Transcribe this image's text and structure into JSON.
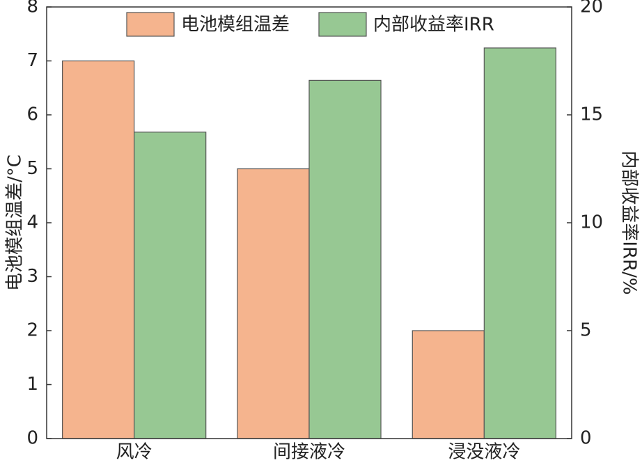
{
  "chart_data": {
    "type": "bar",
    "categories": [
      "风冷",
      "间接液冷",
      "浸没液冷"
    ],
    "series": [
      {
        "name": "电池模组温差",
        "color": "#f5b48e",
        "values": [
          7.0,
          5.0,
          2.0
        ]
      },
      {
        "name": "内部收益率IRR",
        "color": "#97c893",
        "values": [
          14.2,
          16.6,
          18.1
        ],
        "axis": "y2"
      }
    ],
    "ylabel": "电池模组温差/°C",
    "y2label": "内部收益率IRR/%",
    "ylim": [
      0,
      8
    ],
    "yticks": [
      0,
      1,
      2,
      3,
      4,
      5,
      6,
      7,
      8
    ],
    "y2lim": [
      0,
      20
    ],
    "y2ticks": [
      0,
      5,
      10,
      15,
      20
    ],
    "legend": "top"
  }
}
